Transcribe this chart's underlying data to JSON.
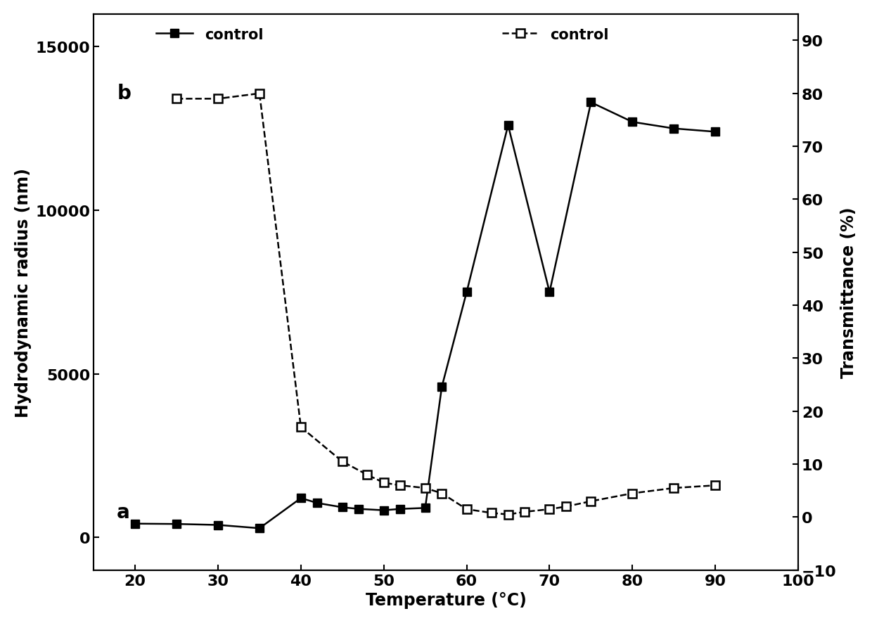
{
  "series_a_x": [
    20,
    25,
    30,
    35,
    40,
    42,
    45,
    47,
    50,
    52,
    55,
    57,
    60,
    65,
    70,
    75,
    80,
    85,
    90
  ],
  "series_a_y": [
    420,
    410,
    380,
    280,
    1200,
    1050,
    920,
    870,
    830,
    870,
    900,
    4600,
    7500,
    12600,
    7500,
    13300,
    12700,
    12500,
    12400
  ],
  "series_b_x": [
    25,
    30,
    35,
    40,
    45,
    48,
    50,
    52,
    55,
    57,
    60,
    63,
    65,
    67,
    70,
    72,
    75,
    80,
    85,
    90
  ],
  "series_b_y": [
    79,
    79,
    80,
    17,
    10.5,
    8.0,
    6.5,
    6.0,
    5.5,
    4.5,
    1.5,
    0.8,
    0.5,
    1.0,
    1.5,
    2.0,
    3.0,
    4.5,
    5.5,
    6.0
  ],
  "color": "#000000",
  "background_color": "#ffffff",
  "ylabel_left": "Hydrodynamic radius (nm)",
  "ylabel_right": "Transmittance (%)",
  "xlabel": "Temperature (°C)",
  "legend_a_label": "control",
  "legend_b_label": "control",
  "annotation_a": "a",
  "annotation_b": "b",
  "ylim_left": [
    -1000,
    16000
  ],
  "ylim_right": [
    -10,
    95
  ],
  "xlim": [
    15,
    100
  ],
  "yticks_left": [
    0,
    5000,
    10000,
    15000
  ],
  "yticks_right": [
    -10,
    0,
    10,
    20,
    30,
    40,
    50,
    60,
    70,
    80,
    90
  ],
  "xticks": [
    20,
    30,
    40,
    50,
    60,
    70,
    80,
    90,
    100
  ],
  "axis_label_fontsize": 17,
  "tick_fontsize": 16,
  "legend_fontsize": 15,
  "marker_size": 9,
  "line_width": 1.8
}
